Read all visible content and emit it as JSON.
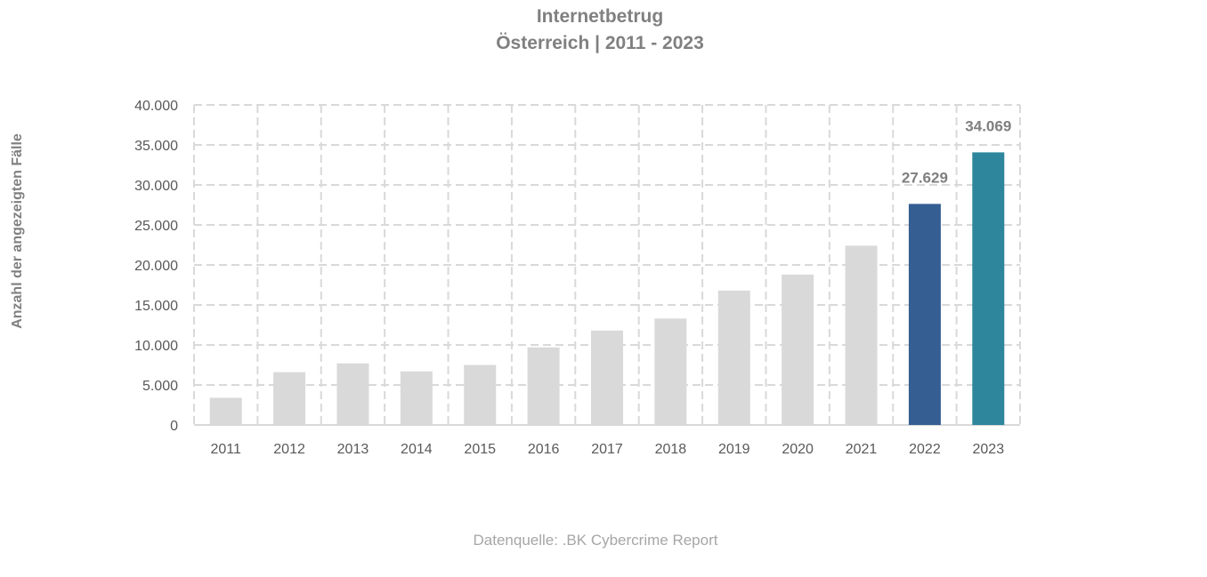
{
  "chart_data": {
    "type": "bar",
    "title_line1": "Internetbetrug",
    "title_line2": "Österreich | 2011 - 2023",
    "ylabel": "Anzahl der angezeigten Fälle",
    "xlabel": "",
    "source": "Datenquelle: .BK Cybercrime Report",
    "categories": [
      "2011",
      "2012",
      "2013",
      "2014",
      "2015",
      "2016",
      "2017",
      "2018",
      "2019",
      "2020",
      "2021",
      "2022",
      "2023"
    ],
    "values": [
      3400,
      6600,
      7700,
      6700,
      7500,
      9700,
      11800,
      13300,
      16800,
      18800,
      22400,
      27629,
      34069
    ],
    "ylim": [
      0,
      40000
    ],
    "ytick_step": 5000,
    "ytick_labels": [
      "0",
      "5.000",
      "10.000",
      "15.000",
      "20.000",
      "25.000",
      "30.000",
      "35.000",
      "40.000"
    ],
    "data_labels": {
      "2022": "27.629",
      "2023": "34.069"
    },
    "grid": "dashed, horizontal and vertical",
    "colors": {
      "default_bar": "#d9d9d9",
      "highlight": {
        "2022": "#355e93",
        "2023": "#2e869c"
      },
      "grid": "#d9d9d9"
    }
  }
}
